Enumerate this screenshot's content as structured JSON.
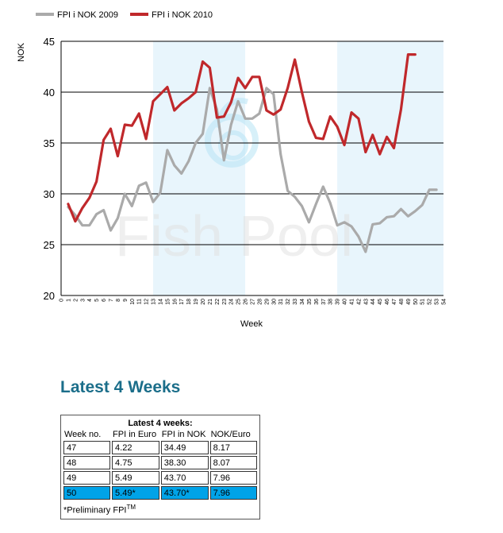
{
  "chart_data": {
    "type": "line",
    "title": "",
    "xlabel": "Week",
    "ylabel": "NOK",
    "xlim": [
      0,
      54
    ],
    "ylim": [
      20,
      45
    ],
    "yticks": [
      20,
      25,
      30,
      35,
      40,
      45
    ],
    "xticks": [
      0,
      1,
      2,
      3,
      4,
      5,
      6,
      7,
      8,
      9,
      10,
      11,
      12,
      13,
      14,
      15,
      16,
      17,
      18,
      19,
      20,
      21,
      22,
      23,
      24,
      25,
      26,
      27,
      28,
      29,
      30,
      31,
      32,
      33,
      34,
      35,
      36,
      37,
      38,
      39,
      40,
      41,
      42,
      43,
      44,
      45,
      46,
      47,
      48,
      49,
      50,
      51,
      52,
      53,
      54
    ],
    "grid": "horizontal",
    "legend_position": "top-left",
    "shaded_week_bands": [
      [
        13,
        26
      ],
      [
        39,
        54
      ]
    ],
    "watermark": "Fish Pool",
    "series": [
      {
        "name": "FPI i NOK 2009",
        "color": "#aaaaaa",
        "x": [
          1,
          2,
          3,
          4,
          5,
          6,
          7,
          8,
          9,
          10,
          11,
          12,
          13,
          14,
          15,
          16,
          17,
          18,
          19,
          20,
          21,
          22,
          23,
          24,
          25,
          26,
          27,
          28,
          29,
          30,
          31,
          32,
          33,
          34,
          35,
          36,
          37,
          38,
          39,
          40,
          41,
          42,
          43,
          44,
          45,
          46,
          47,
          48,
          49,
          50,
          51,
          52,
          53
        ],
        "values": [
          28.7,
          27.9,
          26.9,
          26.9,
          28.0,
          28.4,
          26.4,
          27.6,
          30.0,
          28.8,
          30.8,
          31.1,
          29.2,
          30.1,
          34.3,
          32.8,
          32.0,
          33.2,
          35.0,
          35.9,
          40.4,
          38.3,
          33.3,
          36.8,
          39.1,
          37.4,
          37.4,
          37.9,
          40.4,
          39.8,
          33.9,
          30.3,
          29.7,
          28.8,
          27.2,
          29.0,
          30.7,
          29.1,
          26.9,
          27.2,
          26.8,
          25.8,
          24.3,
          27.0,
          27.1,
          27.7,
          27.8,
          28.5,
          27.8,
          28.3,
          28.9,
          30.4,
          30.4
        ]
      },
      {
        "name": "FPI i NOK 2010",
        "color": "#c0282b",
        "x": [
          1,
          2,
          3,
          4,
          5,
          6,
          7,
          8,
          9,
          10,
          11,
          12,
          13,
          14,
          15,
          16,
          17,
          18,
          19,
          20,
          21,
          22,
          23,
          24,
          25,
          26,
          27,
          28,
          29,
          30,
          31,
          32,
          33,
          34,
          35,
          36,
          37,
          38,
          39,
          40,
          41,
          42,
          43,
          44,
          45,
          46,
          47,
          48,
          49,
          50
        ],
        "values": [
          29.0,
          27.3,
          28.6,
          29.6,
          31.2,
          35.3,
          36.4,
          33.7,
          36.8,
          36.7,
          37.9,
          35.4,
          39.1,
          39.8,
          40.5,
          38.2,
          38.9,
          39.4,
          40.0,
          43.0,
          42.4,
          37.5,
          37.6,
          39.0,
          41.4,
          40.4,
          41.5,
          41.5,
          38.2,
          37.8,
          38.3,
          40.4,
          43.2,
          40.0,
          37.1,
          35.5,
          35.4,
          37.6,
          36.6,
          34.8,
          38.0,
          37.4,
          34.1,
          35.8,
          33.9,
          35.6,
          34.5,
          38.3,
          43.7,
          43.7
        ]
      }
    ]
  },
  "section_title": "Latest 4 Weeks",
  "table": {
    "caption": "Latest 4 weeks:",
    "headers": [
      "Week no.",
      "FPI in Euro",
      "FPI in NOK",
      "NOK/Euro"
    ],
    "rows": [
      [
        "47",
        "4.22",
        "34.49",
        "8.17"
      ],
      [
        "48",
        "4.75",
        "38.30",
        "8.07"
      ],
      [
        "49",
        "5.49",
        "43.70",
        "7.96"
      ],
      [
        "50",
        "5.49*",
        "43.70*",
        "7.96"
      ]
    ],
    "footnote": "*Preliminary FPI",
    "footnote_sup": "TM"
  }
}
